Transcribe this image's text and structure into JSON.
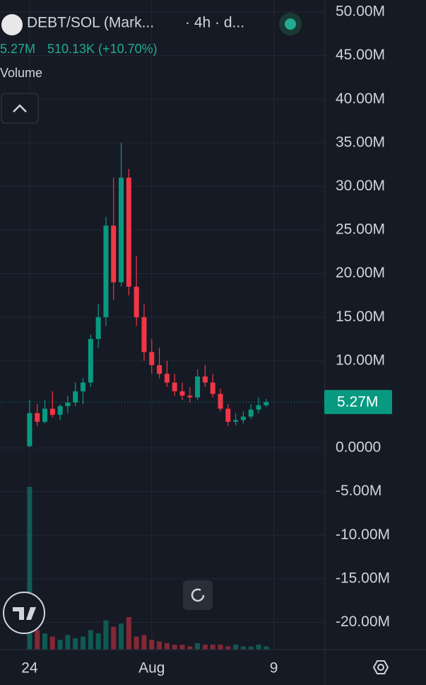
{
  "chart_data": {
    "type": "candlestick",
    "title": "DEBT/SOL (Mark...",
    "subtitle": "· 4h · d...",
    "last_price": 5270000,
    "last_price_label": "5.27M",
    "change_label": "510.13K (+10.70%)",
    "volume_label": "Volume",
    "up_color": "#089981",
    "down_color": "#f23645",
    "x": [
      0,
      0.5,
      1,
      1.5,
      2,
      2.5,
      3,
      3.5,
      4,
      4.5,
      5,
      5.5,
      6,
      6.5,
      7,
      7.5,
      8,
      8.5,
      9,
      9.5,
      10,
      10.5,
      11,
      11.5,
      12,
      12.5,
      13,
      13.5,
      14,
      14.5,
      15,
      15.5
    ],
    "open": [
      200000,
      4000000,
      3000000,
      4500000,
      3800000,
      4800000,
      5200000,
      6500000,
      7500000,
      12500000,
      15000000,
      25500000,
      19000000,
      31000000,
      18500000,
      15000000,
      11000000,
      9500000,
      8500000,
      7500000,
      6500000,
      6000000,
      5800000,
      8200000,
      7500000,
      6200000,
      4500000,
      3000000,
      3200000,
      3600000,
      4400000,
      4900000
    ],
    "high": [
      5500000,
      5000000,
      5500000,
      6500000,
      5000000,
      6000000,
      7500000,
      8000000,
      13000000,
      16500000,
      26500000,
      31000000,
      35000000,
      32000000,
      22000000,
      16500000,
      12500000,
      11500000,
      10000000,
      8500000,
      7500000,
      7000000,
      9000000,
      9500000,
      8500000,
      6800000,
      5000000,
      4000000,
      4200000,
      5000000,
      5800000,
      5600000
    ],
    "low": [
      100000,
      2500000,
      2800000,
      3500000,
      3200000,
      4000000,
      4800000,
      5000000,
      7000000,
      11500000,
      14000000,
      17000000,
      18500000,
      17500000,
      14000000,
      10000000,
      8500000,
      8000000,
      7000000,
      6000000,
      5500000,
      5200000,
      5500000,
      7000000,
      5800000,
      4200000,
      2500000,
      2600000,
      2800000,
      3300000,
      4000000,
      4700000
    ],
    "close": [
      4000000,
      3000000,
      4500000,
      3800000,
      4800000,
      5200000,
      6500000,
      7500000,
      12500000,
      15000000,
      25500000,
      19000000,
      31000000,
      18500000,
      15000000,
      11000000,
      9500000,
      8500000,
      7500000,
      6500000,
      6000000,
      5800000,
      8200000,
      7500000,
      6200000,
      4500000,
      3000000,
      3200000,
      3600000,
      4400000,
      4900000,
      5270000
    ],
    "volume": [
      100,
      12,
      10,
      8,
      6,
      9,
      7,
      8,
      12,
      10,
      18,
      14,
      16,
      20,
      8,
      9,
      6,
      5,
      4,
      3,
      3,
      2,
      4,
      3,
      3,
      3,
      2,
      3,
      2,
      2,
      3,
      2
    ],
    "xlim": [
      -1.94,
      19.35
    ],
    "xticks": [
      {
        "value": 0,
        "label": "24"
      },
      {
        "value": 8,
        "label": "Aug"
      },
      {
        "value": 16,
        "label": "9"
      }
    ],
    "ylim": [
      -23130000,
      51380000
    ],
    "yticks": [
      {
        "value": 50000000,
        "label": "50.00M"
      },
      {
        "value": 45000000,
        "label": "45.00M"
      },
      {
        "value": 40000000,
        "label": "40.00M"
      },
      {
        "value": 35000000,
        "label": "35.00M"
      },
      {
        "value": 30000000,
        "label": "30.00M"
      },
      {
        "value": 25000000,
        "label": "25.00M"
      },
      {
        "value": 20000000,
        "label": "20.00M"
      },
      {
        "value": 15000000,
        "label": "15.00M"
      },
      {
        "value": 10000000,
        "label": "10.00M"
      },
      {
        "value": 0,
        "label": "0.0000"
      },
      {
        "value": -5000000,
        "label": "-5.00M"
      },
      {
        "value": -10000000,
        "label": "-10.00M"
      },
      {
        "value": -15000000,
        "label": "-15.00M"
      },
      {
        "value": -20000000,
        "label": "-20.00M"
      }
    ],
    "grid": true
  }
}
